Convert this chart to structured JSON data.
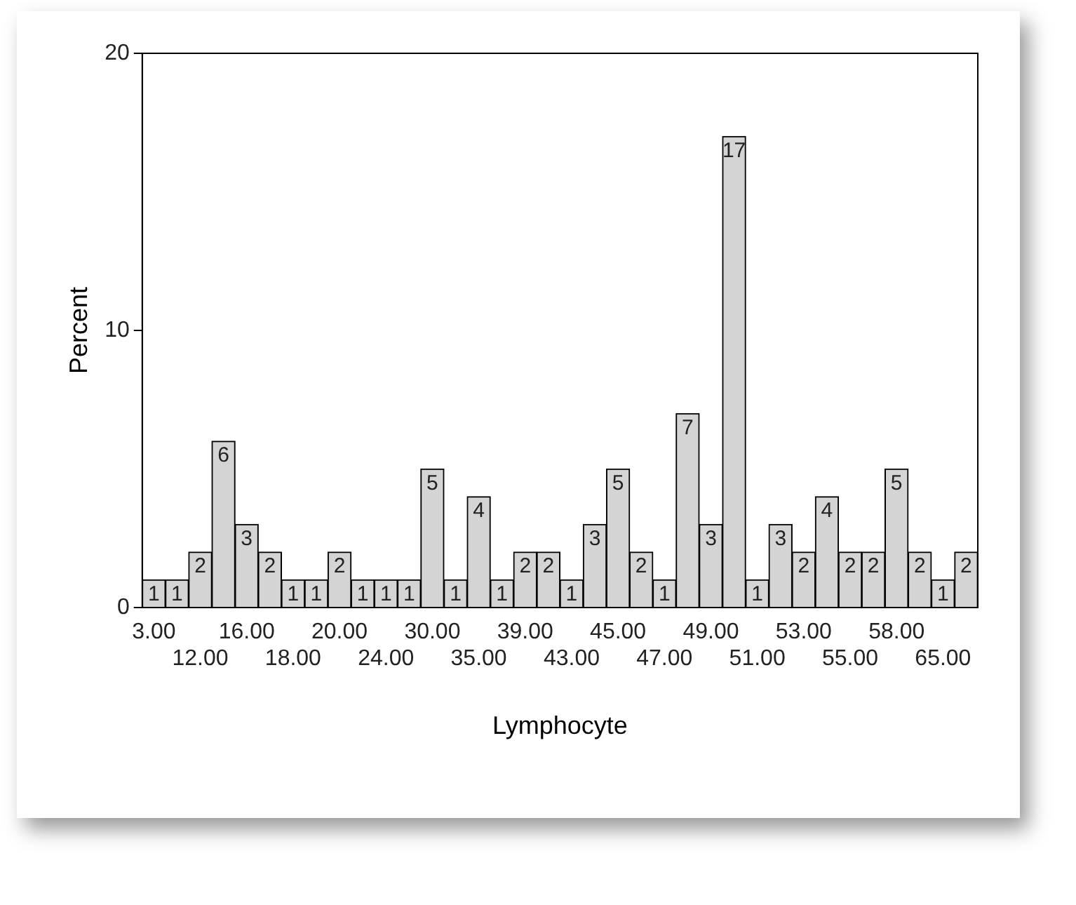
{
  "chart_data": {
    "type": "bar",
    "xlabel": "Lymphocyte",
    "ylabel": "Percent",
    "categories": [
      "3.00",
      null,
      "12.00",
      null,
      "16.00",
      null,
      "18.00",
      null,
      "20.00",
      null,
      "24.00",
      null,
      "30.00",
      null,
      "35.00",
      null,
      "39.00",
      null,
      "43.00",
      null,
      "45.00",
      null,
      "47.00",
      null,
      "49.00",
      null,
      "51.00",
      null,
      "53.00",
      null,
      "55.00",
      null,
      "58.00",
      null,
      "65.00",
      null
    ],
    "values": [
      1,
      1,
      2,
      6,
      3,
      2,
      1,
      1,
      2,
      1,
      1,
      1,
      5,
      1,
      4,
      1,
      2,
      2,
      1,
      3,
      5,
      2,
      1,
      7,
      3,
      17,
      1,
      3,
      2,
      4,
      2,
      2,
      5,
      2,
      1,
      2
    ],
    "color": "#d4d4d4",
    "ylim": [
      0,
      20
    ],
    "yticks": [
      0,
      10,
      20
    ],
    "grid": false,
    "legend": false,
    "data_labels": true
  }
}
